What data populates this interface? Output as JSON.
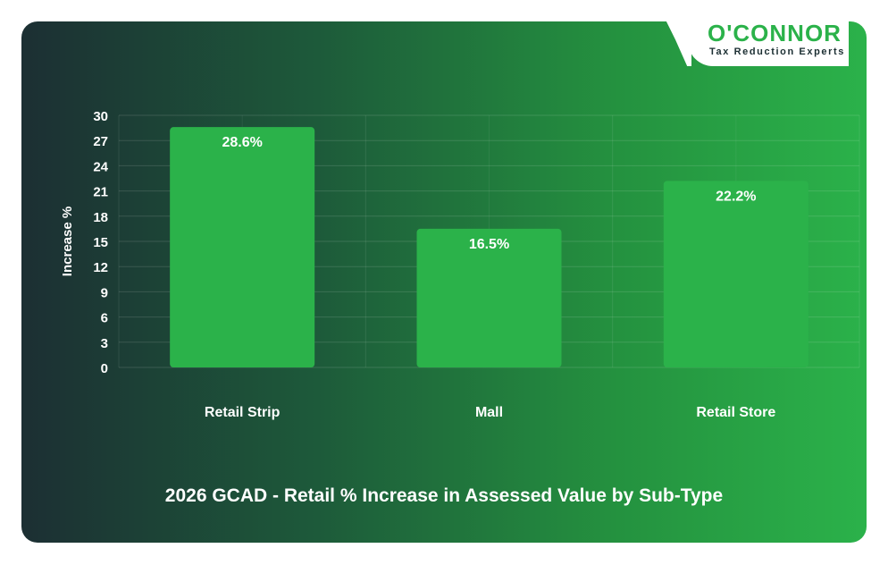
{
  "brand": {
    "name": "O'CONNOR",
    "tagline": "Tax Reduction Experts",
    "color": "#2bb24a"
  },
  "chart_data": {
    "type": "bar",
    "title": "2026 GCAD - Retail % Increase in Assessed Value by Sub-Type",
    "xlabel": "",
    "ylabel": "Increase %",
    "categories": [
      "Retail Strip",
      "Mall",
      "Retail Store"
    ],
    "values": [
      28.6,
      16.5,
      22.2
    ],
    "value_labels": [
      "28.6%",
      "16.5%",
      "22.2%"
    ],
    "ylim": [
      0,
      30
    ],
    "yticks": [
      0,
      3,
      6,
      9,
      12,
      15,
      18,
      21,
      24,
      27,
      30
    ],
    "grid": true,
    "legend": "none",
    "bar_color": "#2bb24a"
  }
}
